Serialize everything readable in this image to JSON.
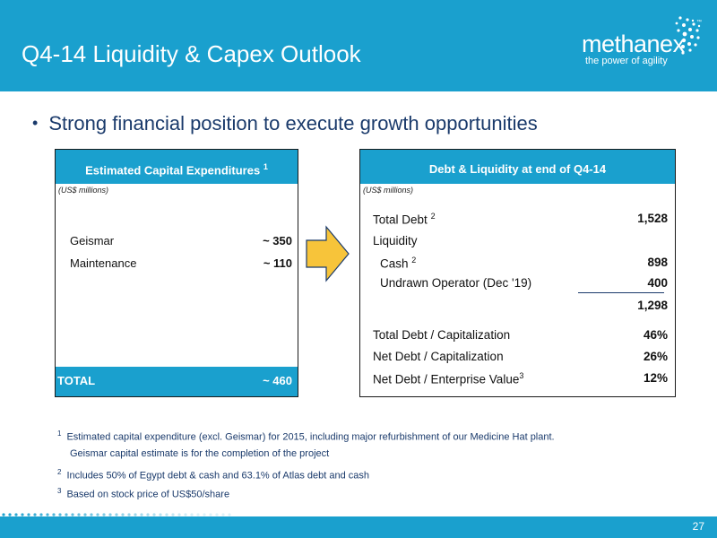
{
  "header": {
    "title": "Q4-14 Liquidity & Capex Outlook"
  },
  "logo": {
    "wordmark": "methanex",
    "tagline": "the power of agility",
    "trademark": "™"
  },
  "bullet": {
    "text": "Strong financial position to execute growth opportunities"
  },
  "capex": {
    "heading": "Estimated Capital Expenditures",
    "heading_sup": "1",
    "units": "(US$ millions)",
    "rows": [
      {
        "label": "Geismar",
        "value": "~ 350"
      },
      {
        "label": "Maintenance",
        "value": "~ 110"
      }
    ],
    "total": {
      "label": "TOTAL",
      "value": "~ 460"
    }
  },
  "debt": {
    "heading": "Debt & Liquidity at end of Q4-14",
    "units": "(US$ millions)",
    "total_debt": {
      "label": "Total Debt",
      "sup": "2",
      "value": "1,528"
    },
    "liquidity": {
      "label": "Liquidity"
    },
    "cash": {
      "label": "Cash",
      "sup": "2",
      "value": "898"
    },
    "undrawn": {
      "label": "Undrawn Operator (Dec '19)",
      "value": "400"
    },
    "liquidity_total": {
      "value": "1,298"
    },
    "ratios": [
      {
        "label": "Total Debt / Capitalization",
        "value": "46%"
      },
      {
        "label": "Net Debt / Capitalization",
        "value": "26%"
      },
      {
        "label": "Net Debt / Enterprise Value",
        "sup": "3",
        "value": "12%"
      }
    ]
  },
  "footnotes": [
    {
      "num": "1",
      "line1": "Estimated capital expenditure (excl. Geismar) for 2015, including major refurbishment of our Medicine Hat plant.",
      "line2": "Geismar capital estimate is for the completion of the project"
    },
    {
      "num": "2",
      "line1": "Includes 50% of Egypt debt & cash and 63.1% of Atlas debt and cash"
    },
    {
      "num": "3",
      "line1": "Based on stock price of US$50/share"
    }
  ],
  "footer": {
    "page_number": "27"
  },
  "colors": {
    "brand_blue": "#1aa0ce",
    "text_navy": "#1a3a6b",
    "arrow_fill": "#f7c43a",
    "arrow_stroke": "#1a3a6b"
  }
}
